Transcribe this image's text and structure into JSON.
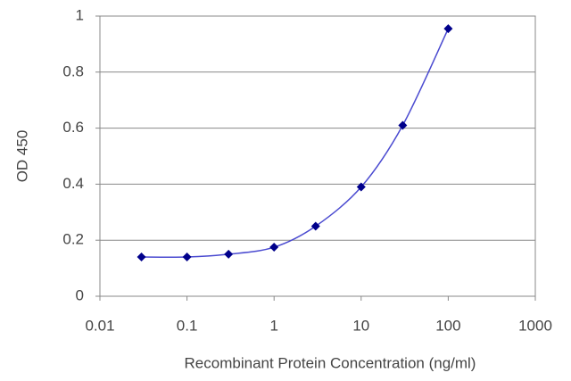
{
  "chart_data": {
    "type": "scatter",
    "x_label": "Recombinant Protein Concentration (ng/ml)",
    "y_label": "OD 450",
    "series": [
      {
        "color": "#00008b",
        "line_color": "#4a4ad0",
        "x": [
          0.03,
          0.1,
          0.3,
          1,
          3,
          10,
          30,
          100
        ],
        "values": [
          0.14,
          0.14,
          0.15,
          0.175,
          0.25,
          0.39,
          0.61,
          0.955
        ]
      }
    ],
    "xlim": [
      0.01,
      1000
    ],
    "xticks": [
      0.01,
      0.1,
      1,
      10,
      100,
      1000
    ],
    "xscale": "log",
    "ylim": [
      0,
      1
    ],
    "yticks": [
      0,
      0.2,
      0.4,
      0.6,
      0.8,
      1
    ],
    "grid": true
  }
}
